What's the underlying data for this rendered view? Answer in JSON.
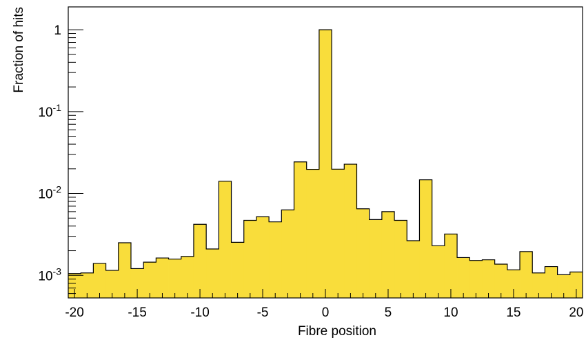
{
  "chart_data": {
    "type": "bar",
    "style": "histogram",
    "title": "",
    "xlabel": "Fibre position",
    "ylabel": "Fraction of hits",
    "xlim": [
      -20.5,
      20.5
    ],
    "ylim": [
      0.00053,
      1.9
    ],
    "yscale": "log",
    "grid": false,
    "legend": "none",
    "fill_color": "#f9dd3b",
    "line_color": "#000000",
    "x_ticks": [
      {
        "value": -20,
        "label": "-20"
      },
      {
        "value": -15,
        "label": "-15"
      },
      {
        "value": -10,
        "label": "-10"
      },
      {
        "value": -5,
        "label": "-5"
      },
      {
        "value": 0,
        "label": "0"
      },
      {
        "value": 5,
        "label": "5"
      },
      {
        "value": 10,
        "label": "10"
      },
      {
        "value": 15,
        "label": "15"
      },
      {
        "value": 20,
        "label": "20"
      }
    ],
    "y_ticks": [
      {
        "value": 1,
        "base": "1",
        "exp": ""
      },
      {
        "value": 0.1,
        "base": "10",
        "exp": "-1"
      },
      {
        "value": 0.01,
        "base": "10",
        "exp": "-2"
      },
      {
        "value": 0.001,
        "base": "10",
        "exp": "-3"
      }
    ],
    "categories": [
      -20,
      -19,
      -18,
      -17,
      -16,
      -15,
      -14,
      -13,
      -12,
      -11,
      -10,
      -9,
      -8,
      -7,
      -6,
      -5,
      -4,
      -3,
      -2,
      -1,
      0,
      1,
      2,
      3,
      4,
      5,
      6,
      7,
      8,
      9,
      10,
      11,
      12,
      13,
      14,
      15,
      16,
      17,
      18,
      19,
      20
    ],
    "values": [
      0.00105,
      0.00107,
      0.0014,
      0.00115,
      0.0025,
      0.00121,
      0.00145,
      0.00163,
      0.00158,
      0.0017,
      0.0042,
      0.0021,
      0.0141,
      0.00253,
      0.0047,
      0.0052,
      0.0045,
      0.0063,
      0.0243,
      0.0197,
      1.0,
      0.0198,
      0.0228,
      0.0065,
      0.0048,
      0.006,
      0.0047,
      0.00265,
      0.0147,
      0.0023,
      0.0032,
      0.00165,
      0.00152,
      0.00155,
      0.00137,
      0.00117,
      0.00195,
      0.00107,
      0.00128,
      0.00102,
      0.0011
    ]
  }
}
